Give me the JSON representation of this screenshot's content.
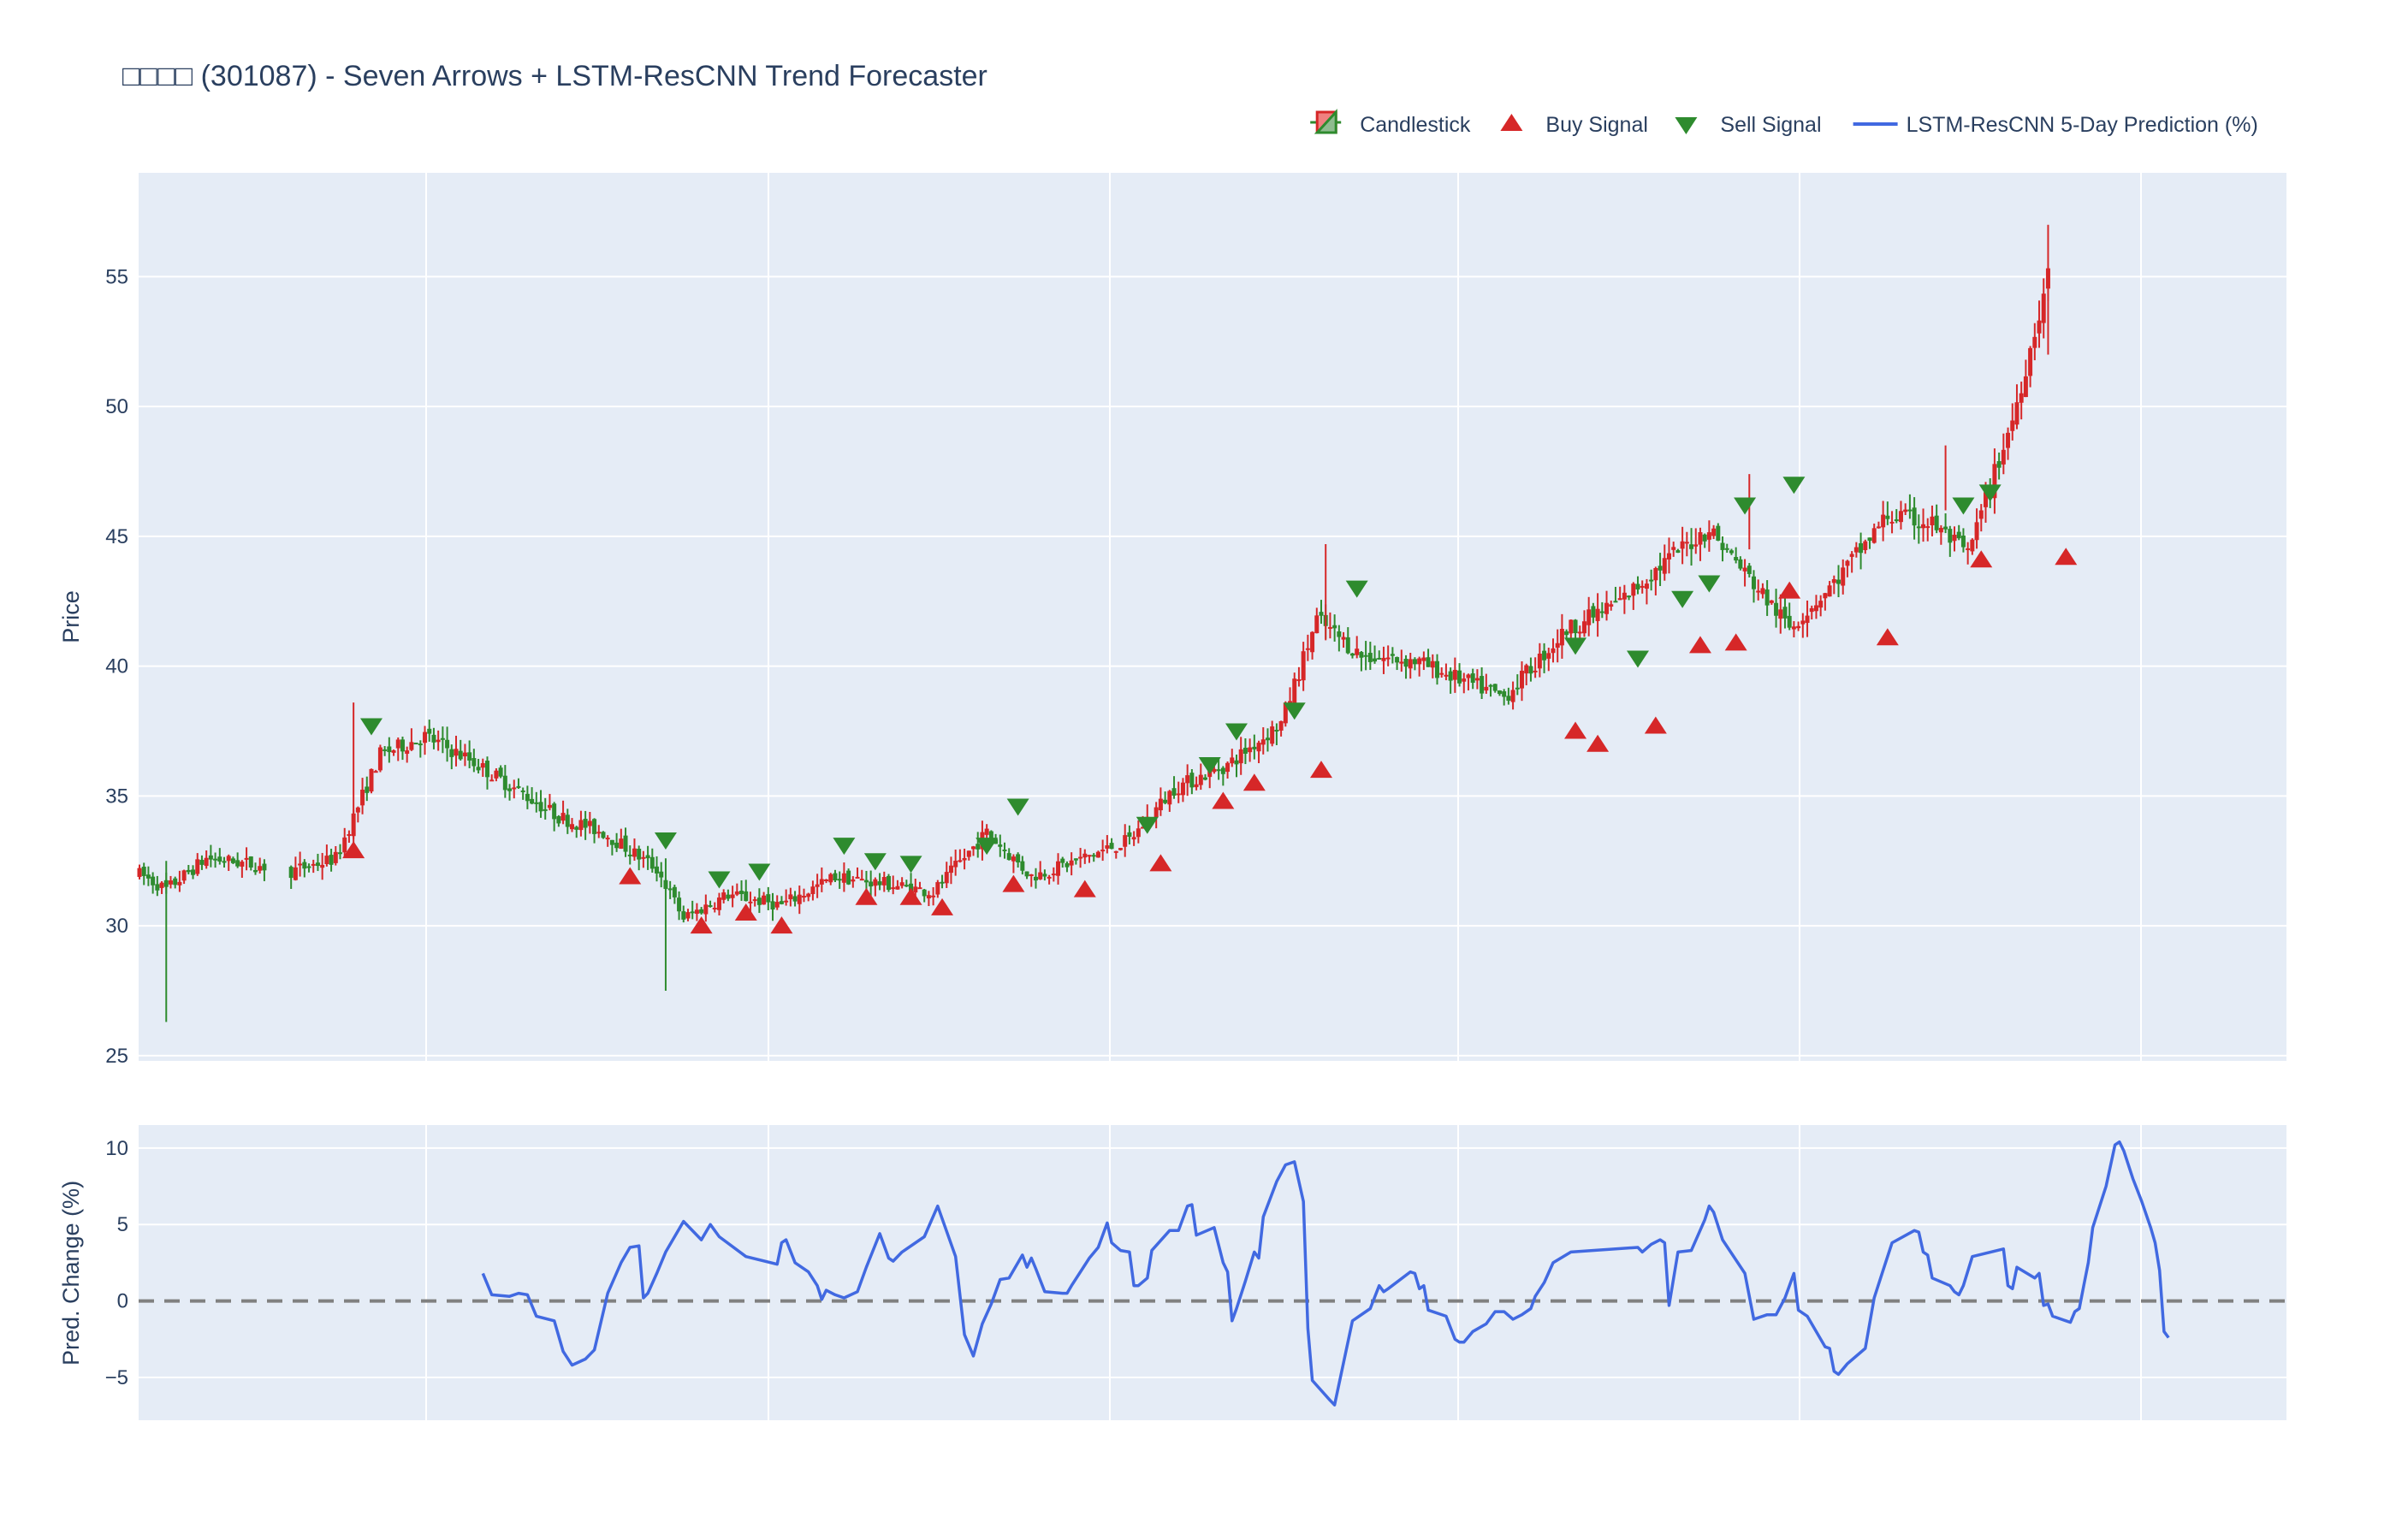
{
  "chart_data": {
    "type": "candlestick",
    "title": "□□□□ (301087) - Seven Arrows + LSTM-ResCNN Trend Forecaster",
    "legend": {
      "position": "top-right",
      "items": [
        {
          "label": "Candlestick",
          "kind": "candle"
        },
        {
          "label": "Buy Signal",
          "kind": "triangle-up",
          "color": "#d62728"
        },
        {
          "label": "Sell Signal",
          "kind": "triangle-down",
          "color": "#2e8b2e"
        },
        {
          "label": "LSTM-ResCNN 5-Day Prediction (%)",
          "kind": "line",
          "color": "#4169e1"
        }
      ]
    },
    "colors": {
      "up": "#d62728",
      "down": "#2e8b2e",
      "prediction": "#4169e1",
      "zero_line": "#808080",
      "plot_bg": "#e5ecf6",
      "grid": "#ffffff"
    },
    "price_panel": {
      "ylabel": "Price",
      "yticks": [
        25,
        30,
        35,
        40,
        45,
        50,
        55
      ],
      "ylim": [
        24.8,
        59
      ],
      "grid": true,
      "price_path_anchors": [
        [
          0,
          32.0
        ],
        [
          6,
          31.4
        ],
        [
          15,
          32.6
        ],
        [
          24,
          32.4
        ],
        [
          34,
          32.1
        ],
        [
          44,
          32.6
        ],
        [
          54,
          36.6
        ],
        [
          64,
          37.3
        ],
        [
          74,
          36.4
        ],
        [
          84,
          35.3
        ],
        [
          94,
          34.2
        ],
        [
          104,
          33.6
        ],
        [
          116,
          32.2
        ],
        [
          122,
          30.3
        ],
        [
          132,
          31.2
        ],
        [
          144,
          30.8
        ],
        [
          156,
          31.9
        ],
        [
          168,
          31.6
        ],
        [
          178,
          31.3
        ],
        [
          190,
          33.6
        ],
        [
          200,
          31.9
        ],
        [
          210,
          32.5
        ],
        [
          222,
          33.3
        ],
        [
          232,
          35.3
        ],
        [
          244,
          36.2
        ],
        [
          256,
          37.8
        ],
        [
          264,
          41.8
        ],
        [
          274,
          40.4
        ],
        [
          286,
          40.2
        ],
        [
          296,
          39.5
        ],
        [
          306,
          38.8
        ],
        [
          320,
          41.4
        ],
        [
          332,
          42.5
        ],
        [
          344,
          44.3
        ],
        [
          352,
          45.3
        ],
        [
          360,
          43.6
        ],
        [
          370,
          41.5
        ],
        [
          380,
          43.2
        ],
        [
          392,
          45.8
        ],
        [
          402,
          45.5
        ],
        [
          410,
          44.3
        ],
        [
          420,
          49.5
        ],
        [
          428,
          55.0
        ]
      ],
      "gaps": [
        [
          28,
          34
        ]
      ],
      "buy_signals": [
        [
          48,
          32.9
        ],
        [
          110,
          31.9
        ],
        [
          126,
          30.0
        ],
        [
          136,
          30.5
        ],
        [
          144,
          30.0
        ],
        [
          163,
          31.1
        ],
        [
          173,
          31.1
        ],
        [
          180,
          30.7
        ],
        [
          196,
          31.6
        ],
        [
          212,
          31.4
        ],
        [
          229,
          32.4
        ],
        [
          243,
          34.8
        ],
        [
          250,
          35.5
        ],
        [
          265,
          36.0
        ],
        [
          322,
          37.5
        ],
        [
          327,
          37.0
        ],
        [
          340,
          37.7
        ],
        [
          350,
          40.8
        ],
        [
          358,
          40.9
        ],
        [
          370,
          42.9
        ],
        [
          392,
          41.1
        ],
        [
          413,
          44.1
        ],
        [
          432,
          44.2
        ]
      ],
      "sell_signals": [
        [
          52,
          37.7
        ],
        [
          118,
          33.3
        ],
        [
          130,
          31.8
        ],
        [
          139,
          32.1
        ],
        [
          158,
          33.1
        ],
        [
          165,
          32.5
        ],
        [
          173,
          32.4
        ],
        [
          190,
          33.1
        ],
        [
          197,
          34.6
        ],
        [
          226,
          33.9
        ],
        [
          240,
          36.2
        ],
        [
          246,
          37.5
        ],
        [
          259,
          38.3
        ],
        [
          273,
          43.0
        ],
        [
          322,
          40.8
        ],
        [
          336,
          40.3
        ],
        [
          346,
          42.6
        ],
        [
          352,
          43.2
        ],
        [
          360,
          46.2
        ],
        [
          371,
          47.0
        ],
        [
          409,
          46.2
        ],
        [
          415,
          46.7
        ]
      ]
    },
    "prediction_panel": {
      "ylabel": "Pred. Change (%)",
      "yticks": [
        -5,
        0,
        5,
        10
      ],
      "ylim": [
        -7.8,
        11.5
      ],
      "zero_line": true,
      "series": [
        {
          "values": [
            [
              77,
              1.8
            ],
            [
              79,
              0.4
            ],
            [
              83,
              0.3
            ],
            [
              85,
              0.5
            ],
            [
              87,
              0.4
            ],
            [
              89,
              -1.0
            ],
            [
              93,
              -1.3
            ],
            [
              95,
              -3.3
            ],
            [
              97,
              -4.2
            ],
            [
              100,
              -3.8
            ],
            [
              102,
              -3.2
            ],
            [
              105,
              0.5
            ],
            [
              108,
              2.5
            ],
            [
              110,
              3.5
            ],
            [
              112,
              3.6
            ],
            [
              113,
              0.2
            ],
            [
              114,
              0.5
            ],
            [
              116,
              1.8
            ],
            [
              118,
              3.2
            ],
            [
              122,
              5.2
            ],
            [
              126,
              4.0
            ],
            [
              128,
              5.0
            ],
            [
              130,
              4.2
            ],
            [
              136,
              2.9
            ],
            [
              143,
              2.4
            ],
            [
              144,
              3.8
            ],
            [
              145,
              4.0
            ],
            [
              147,
              2.5
            ],
            [
              150,
              1.9
            ],
            [
              152,
              1.0
            ],
            [
              153,
              0.1
            ],
            [
              154,
              0.7
            ],
            [
              156,
              0.4
            ],
            [
              158,
              0.2
            ],
            [
              161,
              0.6
            ],
            [
              163,
              2.2
            ],
            [
              166,
              4.4
            ],
            [
              168,
              2.8
            ],
            [
              169,
              2.6
            ],
            [
              171,
              3.2
            ],
            [
              176,
              4.2
            ],
            [
              179,
              6.2
            ],
            [
              183,
              2.9
            ],
            [
              185,
              -2.2
            ],
            [
              187,
              -3.6
            ],
            [
              189,
              -1.5
            ],
            [
              191,
              -0.2
            ],
            [
              193,
              1.4
            ],
            [
              195,
              1.5
            ],
            [
              198,
              3.0
            ],
            [
              199,
              2.2
            ],
            [
              200,
              2.8
            ],
            [
              201,
              2.1
            ],
            [
              203,
              0.6
            ],
            [
              207,
              0.5
            ],
            [
              208,
              0.5
            ],
            [
              209,
              1.0
            ],
            [
              213,
              2.8
            ],
            [
              215,
              3.5
            ],
            [
              217,
              5.1
            ],
            [
              218,
              3.8
            ],
            [
              220,
              3.3
            ],
            [
              222,
              3.2
            ],
            [
              223,
              1.0
            ],
            [
              224,
              1.0
            ],
            [
              226,
              1.5
            ],
            [
              227,
              3.3
            ],
            [
              231,
              4.6
            ],
            [
              233,
              4.6
            ],
            [
              235,
              6.2
            ],
            [
              236,
              6.3
            ],
            [
              237,
              4.3
            ],
            [
              241,
              4.8
            ],
            [
              243,
              2.5
            ],
            [
              244,
              1.9
            ],
            [
              245,
              -1.3
            ],
            [
              246,
              -0.5
            ],
            [
              248,
              1.3
            ],
            [
              250,
              3.2
            ],
            [
              251,
              2.8
            ],
            [
              252,
              5.5
            ],
            [
              255,
              7.8
            ],
            [
              257,
              8.9
            ],
            [
              259,
              9.1
            ],
            [
              261,
              6.5
            ],
            [
              262,
              -1.8
            ],
            [
              263,
              -5.2
            ],
            [
              267,
              -6.5
            ],
            [
              268,
              -6.8
            ],
            [
              272,
              -1.3
            ],
            [
              276,
              -0.5
            ],
            [
              278,
              1.0
            ],
            [
              279,
              0.6
            ],
            [
              280,
              0.8
            ],
            [
              285,
              1.9
            ],
            [
              286,
              1.8
            ],
            [
              287,
              0.8
            ],
            [
              288,
              1.0
            ],
            [
              289,
              -0.6
            ],
            [
              293,
              -1.0
            ],
            [
              295,
              -2.5
            ],
            [
              296,
              -2.7
            ],
            [
              297,
              -2.7
            ],
            [
              299,
              -2.0
            ],
            [
              302,
              -1.5
            ],
            [
              304,
              -0.7
            ],
            [
              306,
              -0.7
            ],
            [
              308,
              -1.2
            ],
            [
              310,
              -0.9
            ],
            [
              312,
              -0.5
            ],
            [
              313,
              0.3
            ],
            [
              315,
              1.2
            ],
            [
              317,
              2.5
            ],
            [
              321,
              3.2
            ],
            [
              336,
              3.5
            ],
            [
              337,
              3.2
            ],
            [
              339,
              3.7
            ],
            [
              341,
              4.0
            ],
            [
              342,
              3.8
            ],
            [
              343,
              -0.3
            ],
            [
              345,
              3.2
            ],
            [
              348,
              3.3
            ],
            [
              351,
              5.3
            ],
            [
              352,
              6.2
            ],
            [
              353,
              5.8
            ],
            [
              355,
              4.0
            ],
            [
              360,
              1.8
            ],
            [
              362,
              -1.2
            ],
            [
              365,
              -0.9
            ],
            [
              367,
              -0.9
            ],
            [
              369,
              0.2
            ],
            [
              371,
              1.8
            ],
            [
              372,
              -0.6
            ],
            [
              374,
              -1.0
            ],
            [
              378,
              -3.0
            ],
            [
              379,
              -3.1
            ],
            [
              380,
              -4.6
            ],
            [
              381,
              -4.8
            ],
            [
              383,
              -4.1
            ],
            [
              387,
              -3.1
            ],
            [
              389,
              0.2
            ],
            [
              391,
              2.0
            ],
            [
              393,
              3.8
            ],
            [
              398,
              4.6
            ],
            [
              399,
              4.5
            ],
            [
              400,
              3.2
            ],
            [
              401,
              3.0
            ],
            [
              402,
              1.5
            ],
            [
              406,
              1.0
            ],
            [
              407,
              0.6
            ],
            [
              408,
              0.4
            ],
            [
              409,
              1.0
            ],
            [
              411,
              2.9
            ],
            [
              418,
              3.4
            ],
            [
              419,
              1.0
            ],
            [
              420,
              0.8
            ],
            [
              421,
              2.2
            ],
            [
              425,
              1.5
            ],
            [
              426,
              1.8
            ],
            [
              427,
              -0.3
            ],
            [
              428,
              -0.2
            ],
            [
              429,
              -1.0
            ],
            [
              432,
              -1.3
            ],
            [
              433,
              -1.4
            ],
            [
              434,
              -0.7
            ],
            [
              435,
              -0.5
            ],
            [
              436,
              1.0
            ],
            [
              437,
              2.5
            ],
            [
              438,
              4.8
            ],
            [
              441,
              7.5
            ],
            [
              443,
              10.2
            ],
            [
              444,
              10.4
            ],
            [
              445,
              9.8
            ],
            [
              447,
              8.0
            ],
            [
              449,
              6.5
            ],
            [
              451,
              4.8
            ],
            [
              452,
              3.8
            ],
            [
              453,
              2.0
            ],
            [
              454,
              -2.0
            ],
            [
              455,
              -2.4
            ]
          ]
        }
      ]
    },
    "x_count": 460
  }
}
